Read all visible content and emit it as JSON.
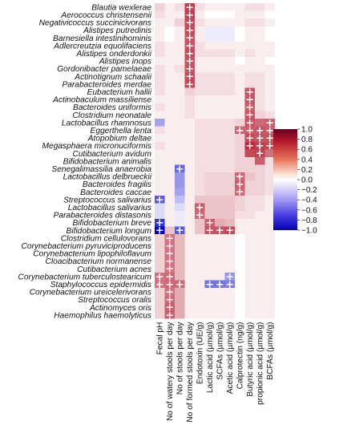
{
  "chart_data": {
    "type": "heatmap",
    "colorbar": {
      "ticks": [
        "1.0",
        "0.8",
        "0.6",
        "0.4",
        "0.2",
        "0.0",
        "−0.2",
        "−0.4",
        "−0.6",
        "−0.8",
        "−1.0"
      ],
      "range": [
        -1.0,
        1.0
      ],
      "colors": {
        "positive": "#b2182b",
        "zero": "#ffffff",
        "negative": "#0000cc"
      }
    },
    "rows": [
      "Blautia wexlerae",
      "Aerococcus christensenii",
      "Negativicoccus succinicivorans",
      "Alistipes putredinis",
      "Barnesiella intestinihominis",
      "Adlercreutzia equolifaciens",
      "Alistipes onderdonkii",
      "Alistipes inops",
      "Gordonibacter pamelaeae",
      "Actinotignum schaalii",
      "Parabacteroides merdae",
      "Eubacterium hallii",
      "Actinobaculum massiliense",
      "Bacteroides uniformis",
      "Clostridium neonatale",
      "Lactobacillus rhamnosus",
      "Eggerthella lenta",
      "Atopobium deltae",
      "Megasphaera micronuciformis",
      "Cutibacterium avidum",
      "Bifidobacterium animalis",
      "Senegalimassilia anaerobia",
      "Lactobacillus delbrueckii",
      "Bacteroides fragilis",
      "Bacteroides caccae",
      "Streptococcus salivarius",
      "Lactobacillus salivarius",
      "Parabacteroides distasonis",
      "Bifidobacterium breve",
      "Bifidobacterium longum",
      "Clostridium cellulovorans",
      "Corynebacterium pyruviciproducens",
      "Corynebacterium lipophiloflavum",
      "Cloacibacterium normanense",
      "Cutibacterium acnes",
      "Corynebacterium tuberculostearicum",
      "Staphylococcus epidermidis",
      "Corynebacterium ureicelerivorans",
      "Streptococcus oralis",
      "Actinomyces oris",
      "Haemophilus haemolyticus"
    ],
    "columns": [
      "Fecal pH",
      "No of watery stools per day",
      "No of stools per day",
      "No of formed stools per day",
      "Endotoxin (UE/g)",
      "Lactic acid (µmol/g)",
      "SCFAs (µmol/g)",
      "Acetic acid (µmol/g)",
      "Calprotectin (ng/g)",
      "Butyric acid (µmol/g)",
      "propionic acid (µmol/g)",
      "BCFAs (µmol/g)"
    ],
    "values": [
      [
        0.15,
        0.05,
        0.1,
        0.8,
        0.1,
        0.05,
        0.05,
        0.05,
        0.05,
        0.1,
        0.1,
        0.05
      ],
      [
        0.1,
        0.05,
        0.05,
        0.8,
        0.05,
        0.0,
        0.0,
        0.0,
        0.05,
        0.05,
        0.05,
        0.0
      ],
      [
        0.05,
        0.05,
        0.15,
        0.75,
        0.1,
        0.05,
        0.05,
        0.05,
        0.05,
        0.1,
        0.1,
        0.05
      ],
      [
        0.05,
        0.0,
        0.05,
        0.75,
        0.05,
        -0.05,
        -0.05,
        -0.05,
        0.0,
        0.05,
        0.05,
        0.0
      ],
      [
        0.05,
        0.0,
        0.05,
        0.7,
        0.05,
        -0.05,
        -0.05,
        -0.05,
        0.0,
        0.05,
        0.05,
        0.0
      ],
      [
        0.1,
        0.05,
        0.05,
        0.7,
        0.1,
        0.05,
        0.05,
        0.05,
        0.05,
        0.05,
        0.05,
        0.05
      ],
      [
        0.1,
        0.05,
        0.05,
        0.75,
        0.1,
        0.1,
        0.1,
        0.1,
        0.05,
        0.1,
        0.05,
        0.05
      ],
      [
        0.05,
        0.05,
        0.05,
        0.7,
        0.05,
        0.05,
        0.05,
        0.05,
        0.0,
        0.05,
        0.05,
        0.0
      ],
      [
        0.1,
        0.05,
        0.1,
        0.7,
        0.05,
        0.05,
        0.05,
        0.05,
        0.05,
        0.05,
        0.05,
        0.05
      ],
      [
        0.1,
        0.05,
        0.05,
        0.75,
        0.1,
        0.1,
        0.1,
        0.1,
        0.05,
        0.1,
        0.1,
        0.05
      ],
      [
        0.1,
        0.05,
        0.05,
        0.75,
        0.1,
        0.1,
        0.1,
        0.1,
        0.05,
        0.1,
        0.1,
        0.05
      ],
      [
        0.1,
        0.05,
        0.05,
        0.15,
        0.1,
        0.1,
        0.1,
        0.1,
        0.05,
        0.7,
        0.1,
        0.05
      ],
      [
        0.05,
        0.05,
        0.05,
        0.1,
        0.05,
        0.05,
        0.05,
        0.05,
        0.05,
        0.7,
        0.1,
        0.05
      ],
      [
        0.1,
        0.05,
        0.05,
        0.1,
        0.05,
        0.05,
        0.05,
        0.05,
        0.05,
        0.65,
        0.1,
        0.05
      ],
      [
        0.05,
        0.05,
        0.05,
        0.1,
        0.05,
        0.05,
        0.05,
        0.05,
        0.05,
        0.7,
        0.15,
        0.1
      ],
      [
        -0.3,
        0.05,
        0.05,
        0.05,
        0.1,
        0.1,
        0.1,
        0.1,
        0.15,
        0.7,
        0.6,
        0.65
      ],
      [
        0.1,
        0.05,
        0.05,
        0.05,
        0.1,
        0.1,
        0.1,
        0.1,
        0.6,
        0.65,
        0.7,
        0.65
      ],
      [
        0.05,
        0.05,
        0.05,
        0.05,
        0.1,
        0.1,
        0.1,
        0.1,
        0.15,
        0.75,
        0.7,
        0.7
      ],
      [
        0.1,
        0.05,
        0.05,
        0.05,
        0.1,
        0.1,
        0.1,
        0.1,
        0.15,
        0.9,
        0.8,
        0.75
      ],
      [
        0.05,
        0.05,
        0.05,
        0.05,
        0.1,
        0.1,
        0.1,
        0.1,
        0.15,
        0.75,
        0.8,
        0.55
      ],
      [
        0.05,
        0.05,
        0.05,
        0.05,
        0.1,
        0.1,
        0.1,
        0.1,
        0.15,
        0.15,
        0.65,
        0.1
      ],
      [
        0.05,
        0.05,
        -0.55,
        0.05,
        0.1,
        0.1,
        0.1,
        0.1,
        0.15,
        0.15,
        0.15,
        0.1
      ],
      [
        0.05,
        0.05,
        -0.35,
        0.05,
        0.1,
        0.15,
        0.15,
        0.15,
        0.6,
        0.2,
        0.15,
        0.1
      ],
      [
        0.05,
        0.05,
        -0.35,
        0.05,
        0.1,
        0.15,
        0.15,
        0.15,
        0.65,
        0.15,
        0.15,
        0.1
      ],
      [
        0.05,
        0.05,
        -0.3,
        0.05,
        0.1,
        0.15,
        0.15,
        0.15,
        0.6,
        0.15,
        0.15,
        0.1
      ],
      [
        -0.6,
        0.05,
        -0.2,
        0.05,
        0.2,
        0.2,
        0.2,
        0.2,
        0.15,
        0.1,
        0.1,
        0.05
      ],
      [
        -0.1,
        0.05,
        -0.1,
        0.05,
        0.65,
        0.2,
        0.2,
        0.2,
        0.15,
        0.1,
        0.1,
        0.05
      ],
      [
        -0.1,
        0.05,
        -0.05,
        0.05,
        0.6,
        0.2,
        0.2,
        0.2,
        0.1,
        0.1,
        0.05,
        0.05
      ],
      [
        -0.75,
        0.05,
        -0.05,
        0.05,
        0.2,
        0.65,
        0.3,
        0.25,
        0.05,
        0.05,
        0.05,
        0.05
      ],
      [
        -1.0,
        0.2,
        -0.6,
        0.05,
        0.2,
        0.7,
        0.7,
        0.75,
        0.05,
        0.05,
        0.05,
        0.05
      ],
      [
        0.15,
        0.55,
        0.25,
        0.05,
        0.05,
        0.05,
        0.05,
        0.05,
        0.0,
        0.05,
        0.05,
        0.05
      ],
      [
        0.15,
        0.55,
        0.25,
        0.05,
        0.05,
        0.05,
        0.05,
        0.05,
        0.0,
        0.05,
        0.05,
        0.05
      ],
      [
        0.15,
        0.55,
        0.25,
        0.05,
        0.05,
        0.05,
        0.05,
        0.05,
        0.0,
        0.05,
        0.05,
        0.05
      ],
      [
        0.15,
        0.55,
        0.25,
        0.05,
        0.05,
        0.05,
        0.05,
        0.05,
        0.0,
        0.05,
        0.05,
        0.05
      ],
      [
        0.15,
        0.55,
        0.25,
        0.05,
        0.05,
        0.05,
        0.05,
        0.05,
        0.0,
        0.05,
        0.05,
        0.05
      ],
      [
        0.55,
        0.6,
        0.25,
        0.05,
        0.05,
        0.05,
        0.05,
        -0.35,
        0.0,
        0.05,
        0.05,
        0.05
      ],
      [
        0.55,
        0.6,
        0.6,
        0.05,
        0.05,
        -0.5,
        -0.5,
        -0.45,
        0.0,
        0.05,
        0.05,
        0.05
      ],
      [
        0.15,
        0.55,
        0.3,
        0.05,
        0.05,
        0.05,
        0.05,
        0.05,
        0.0,
        0.05,
        0.05,
        0.05
      ],
      [
        0.15,
        0.6,
        0.3,
        0.05,
        0.05,
        0.05,
        0.05,
        0.05,
        0.0,
        0.05,
        0.05,
        0.05
      ],
      [
        0.15,
        0.65,
        0.3,
        0.05,
        0.05,
        0.05,
        0.05,
        0.05,
        0.0,
        0.05,
        0.05,
        0.05
      ],
      [
        0.15,
        0.65,
        0.3,
        0.05,
        0.05,
        0.05,
        0.05,
        0.05,
        0.0,
        0.05,
        0.05,
        0.05
      ]
    ],
    "significant": [
      [
        0,
        3
      ],
      [
        1,
        3
      ],
      [
        2,
        3
      ],
      [
        3,
        3
      ],
      [
        4,
        3
      ],
      [
        5,
        3
      ],
      [
        6,
        3
      ],
      [
        7,
        3
      ],
      [
        8,
        3
      ],
      [
        9,
        3
      ],
      [
        10,
        3
      ],
      [
        11,
        9
      ],
      [
        12,
        9
      ],
      [
        13,
        9
      ],
      [
        14,
        9
      ],
      [
        15,
        9
      ],
      [
        15,
        11
      ],
      [
        16,
        8
      ],
      [
        16,
        9
      ],
      [
        16,
        10
      ],
      [
        16,
        11
      ],
      [
        17,
        9
      ],
      [
        17,
        10
      ],
      [
        17,
        11
      ],
      [
        18,
        9
      ],
      [
        18,
        10
      ],
      [
        18,
        11
      ],
      [
        19,
        10
      ],
      [
        21,
        2
      ],
      [
        22,
        8
      ],
      [
        23,
        8
      ],
      [
        24,
        8
      ],
      [
        25,
        0
      ],
      [
        26,
        4
      ],
      [
        27,
        4
      ],
      [
        28,
        0
      ],
      [
        28,
        5
      ],
      [
        29,
        0
      ],
      [
        29,
        2
      ],
      [
        29,
        5
      ],
      [
        29,
        6
      ],
      [
        29,
        7
      ],
      [
        30,
        1
      ],
      [
        31,
        1
      ],
      [
        32,
        1
      ],
      [
        33,
        1
      ],
      [
        34,
        1
      ],
      [
        35,
        0
      ],
      [
        35,
        1
      ],
      [
        35,
        7
      ],
      [
        36,
        0
      ],
      [
        36,
        1
      ],
      [
        36,
        2
      ],
      [
        36,
        5
      ],
      [
        36,
        6
      ],
      [
        36,
        7
      ],
      [
        37,
        1
      ],
      [
        38,
        1
      ],
      [
        39,
        1
      ],
      [
        40,
        1
      ]
    ],
    "significance_marker": "+",
    "grid": false
  }
}
